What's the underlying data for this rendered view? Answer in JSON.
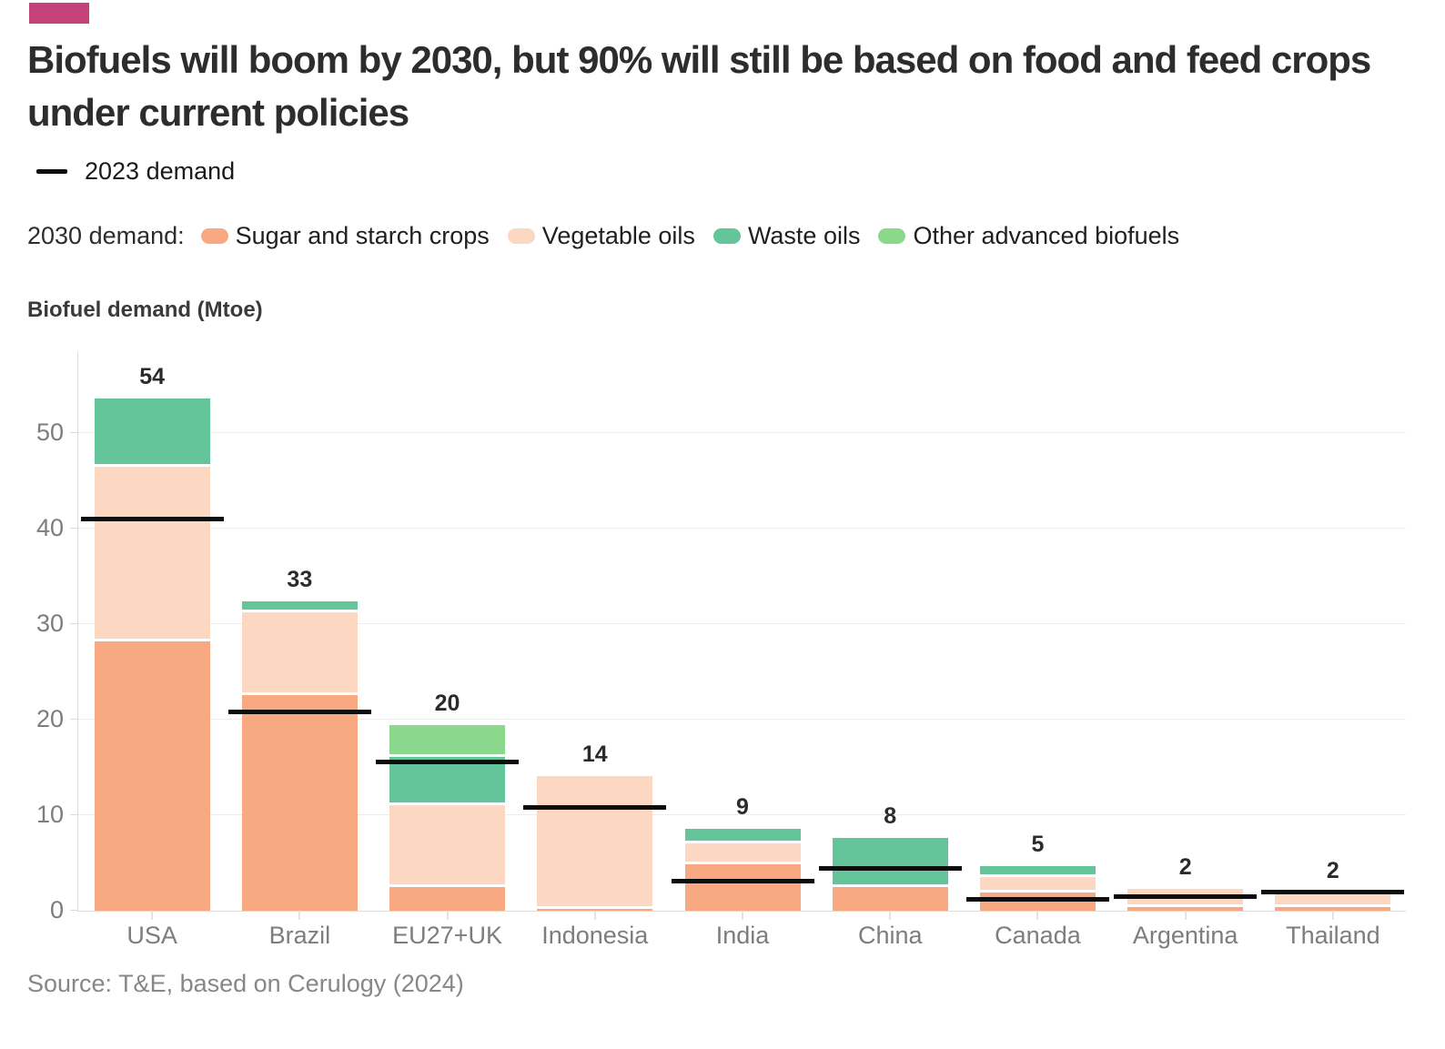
{
  "brand": {
    "accent_color": "#c4417a"
  },
  "title": "Biofuels will boom by 2030, but 90% will still be based on food and feed crops under current policies",
  "legend_2023": {
    "label": "2023 demand",
    "line_color": "#0d0d0d"
  },
  "legend_2030": {
    "prefix": "2030 demand:",
    "items": [
      {
        "label": "Sugar and starch crops",
        "color": "#f9a981"
      },
      {
        "label": "Vegetable oils",
        "color": "#fcd8c2"
      },
      {
        "label": "Waste oils",
        "color": "#64c49a"
      },
      {
        "label": "Other advanced biofuels",
        "color": "#8ad88c"
      }
    ]
  },
  "axis_title": "Biofuel demand (Mtoe)",
  "source": "Source: T&E, based on Cerulogy (2024)",
  "chart_data": {
    "type": "bar",
    "stacked": true,
    "title": "Biofuels will boom by 2030, but 90% will still be based on food and feed crops under current policies",
    "ylabel": "Biofuel demand (Mtoe)",
    "xlabel": "",
    "categories": [
      "USA",
      "Brazil",
      "EU27+UK",
      "Indonesia",
      "India",
      "China",
      "Canada",
      "Argentina",
      "Thailand"
    ],
    "series": [
      {
        "name": "Sugar and starch crops",
        "color": "#f9a981",
        "values": [
          28.3,
          22.7,
          2.6,
          0.3,
          5.0,
          2.6,
          2.0,
          0.5,
          0.5
        ]
      },
      {
        "name": "Vegetable oils",
        "color": "#fcd8c2",
        "values": [
          18.3,
          8.7,
          8.6,
          13.8,
          2.2,
          0,
          1.7,
          1.8,
          1.4
        ]
      },
      {
        "name": "Waste oils",
        "color": "#64c49a",
        "values": [
          7.0,
          1.0,
          5.0,
          0,
          1.4,
          5.0,
          1.0,
          0,
          0
        ]
      },
      {
        "name": "Other advanced biofuels",
        "color": "#8ad88c",
        "values": [
          0,
          0,
          3.2,
          0,
          0,
          0,
          0,
          0,
          0
        ]
      }
    ],
    "bar_total_labels": [
      "54",
      "33",
      "20",
      "14",
      "9",
      "8",
      "5",
      "2",
      "2"
    ],
    "overlay_line": {
      "name": "2023 demand",
      "color": "#0d0d0d",
      "values": [
        41.0,
        20.8,
        15.6,
        10.8,
        3.1,
        4.4,
        1.2,
        1.5,
        1.9
      ]
    },
    "yticks": [
      0,
      10,
      20,
      30,
      40,
      50
    ],
    "ylim": [
      0,
      58.5
    ],
    "grid": true,
    "legend_position": "top"
  }
}
